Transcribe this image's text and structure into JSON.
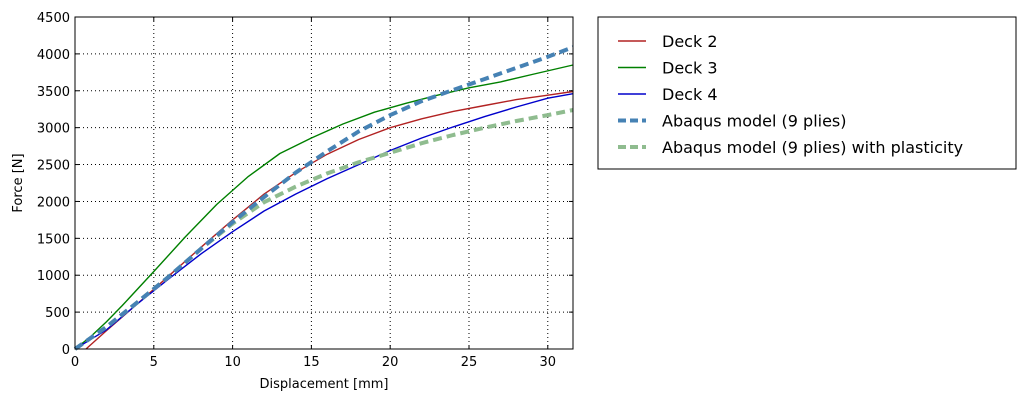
{
  "chart_data": {
    "type": "line",
    "xlabel": "Displacement [mm]",
    "ylabel": "Force [N]",
    "xlim": [
      0,
      31.6
    ],
    "ylim": [
      0,
      4500
    ],
    "xticks": [
      0,
      5,
      10,
      15,
      20,
      25,
      30
    ],
    "yticks": [
      0,
      500,
      1000,
      1500,
      2000,
      2500,
      3000,
      3500,
      4000,
      4500
    ],
    "grid": true,
    "grid_style": "dotted",
    "legend_position": "outside-right-top",
    "series": [
      {
        "name": "Deck 2",
        "color": "#b22222",
        "style": "solid",
        "x": [
          0.7,
          2,
          4,
          6,
          8,
          10,
          12,
          14,
          16,
          18,
          20,
          22,
          24,
          26,
          28,
          30,
          31.6
        ],
        "y": [
          0,
          250,
          620,
          1000,
          1380,
          1750,
          2100,
          2390,
          2640,
          2840,
          3000,
          3120,
          3220,
          3300,
          3380,
          3440,
          3490
        ]
      },
      {
        "name": "Deck 3",
        "color": "#008000",
        "style": "solid",
        "x": [
          0,
          1,
          2,
          3,
          5,
          7,
          9,
          11,
          13,
          15,
          17,
          19,
          21,
          23,
          25,
          27,
          29,
          31.6
        ],
        "y": [
          0,
          170,
          370,
          590,
          1050,
          1520,
          1960,
          2340,
          2650,
          2860,
          3050,
          3210,
          3330,
          3440,
          3540,
          3620,
          3720,
          3850
        ]
      },
      {
        "name": "Deck 4",
        "color": "#0000cc",
        "style": "solid",
        "x": [
          0,
          2,
          4,
          6,
          8,
          10,
          12,
          14,
          16,
          18,
          20,
          22,
          24,
          26,
          28,
          30,
          31.6
        ],
        "y": [
          0,
          260,
          620,
          960,
          1290,
          1590,
          1870,
          2100,
          2310,
          2500,
          2690,
          2860,
          3010,
          3150,
          3280,
          3400,
          3460
        ]
      },
      {
        "name": "Abaqus model (9 plies)",
        "color": "#4682b4",
        "style": "dashed",
        "x": [
          0,
          2,
          4,
          6,
          8,
          10,
          12,
          14,
          16,
          18,
          20,
          22,
          24,
          26,
          28,
          30,
          31.6
        ],
        "y": [
          0,
          300,
          640,
          990,
          1360,
          1720,
          2060,
          2390,
          2680,
          2950,
          3170,
          3360,
          3510,
          3660,
          3810,
          3960,
          4090
        ]
      },
      {
        "name": "Abaqus model (9 plies) with plasticity",
        "color": "#8fbc8f",
        "style": "dashed",
        "x": [
          0,
          2,
          4,
          6,
          8,
          10,
          12,
          14,
          16,
          18,
          20,
          22,
          24,
          26,
          28,
          30,
          31.6
        ],
        "y": [
          0,
          300,
          640,
          990,
          1360,
          1700,
          1990,
          2200,
          2380,
          2530,
          2660,
          2790,
          2900,
          3000,
          3090,
          3170,
          3240
        ]
      }
    ]
  }
}
